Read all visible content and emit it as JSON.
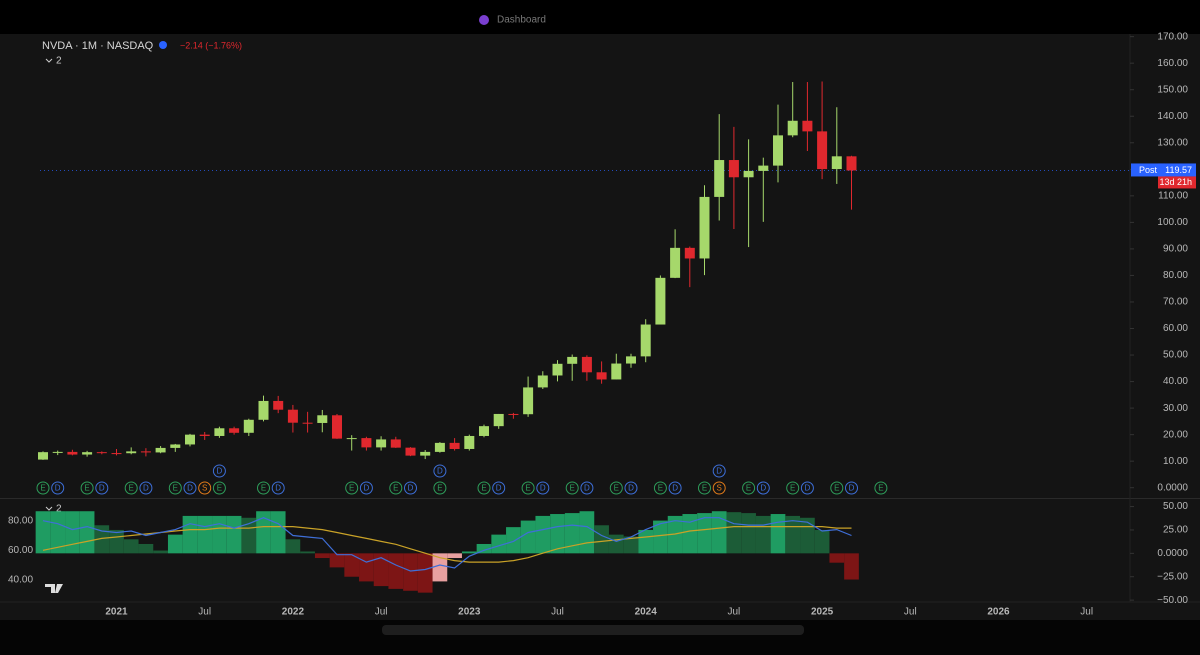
{
  "tabs": [
    "Dashboard"
  ],
  "chart_data": [
    {
      "type": "candlestick",
      "title": "NVDA · 1M · NASDAQ",
      "change": "−2.14 (−1.76%)",
      "pane_count": "2",
      "x": [
        "2020-08",
        "2020-09",
        "2020-10",
        "2020-11",
        "2020-12",
        "2021-01",
        "2021-02",
        "2021-03",
        "2021-04",
        "2021-05",
        "2021-06",
        "2021-07",
        "2021-08",
        "2021-09",
        "2021-10",
        "2021-11",
        "2021-12",
        "2022-01",
        "2022-02",
        "2022-03",
        "2022-04",
        "2022-05",
        "2022-06",
        "2022-07",
        "2022-08",
        "2022-09",
        "2022-10",
        "2022-11",
        "2022-12",
        "2023-01",
        "2023-02",
        "2023-03",
        "2023-04",
        "2023-05",
        "2023-06",
        "2023-07",
        "2023-08",
        "2023-09",
        "2023-10",
        "2023-11",
        "2023-12",
        "2024-01",
        "2024-02",
        "2024-03",
        "2024-04",
        "2024-05",
        "2024-06",
        "2024-07",
        "2024-08",
        "2024-09",
        "2024-10",
        "2024-11",
        "2024-12",
        "2025-01",
        "2025-02",
        "2025-03"
      ],
      "open": [
        10.6,
        13.4,
        13.5,
        12.5,
        13.4,
        13.05,
        13.0,
        13.7,
        13.3,
        15.0,
        16.3,
        20.0,
        19.5,
        22.4,
        20.7,
        25.6,
        32.7,
        29.4,
        24.5,
        24.4,
        27.3,
        18.5,
        18.7,
        15.2,
        18.2,
        15.1,
        12.1,
        13.5,
        16.9,
        14.6,
        19.5,
        23.2,
        27.8,
        27.7,
        37.8,
        42.3,
        46.7,
        49.3,
        43.5,
        40.8,
        46.8,
        49.5,
        61.5,
        79.1,
        90.4,
        86.4,
        109.6,
        123.5,
        117.0,
        119.4,
        121.4,
        132.8,
        138.3,
        134.3,
        120.1,
        124.9
      ],
      "high": [
        13.7,
        14.0,
        14.3,
        13.9,
        13.7,
        14.6,
        15.2,
        14.9,
        15.7,
        16.5,
        20.3,
        21.0,
        23.0,
        23.0,
        26.0,
        34.7,
        34.6,
        31.2,
        28.6,
        29.3,
        27.8,
        19.8,
        19.2,
        19.4,
        19.2,
        15.3,
        14.2,
        17.2,
        18.7,
        20.0,
        23.8,
        27.8,
        28.2,
        41.9,
        43.9,
        48.1,
        50.2,
        49.9,
        47.6,
        50.5,
        50.5,
        63.5,
        80.0,
        97.4,
        90.9,
        114.0,
        140.8,
        136.0,
        131.3,
        124.4,
        144.4,
        152.9,
        152.9,
        153.1,
        143.4,
        125.1
      ],
      "low": [
        10.5,
        12.3,
        12.2,
        11.7,
        12.6,
        12.2,
        12.6,
        11.8,
        13.0,
        13.5,
        15.6,
        18.0,
        18.8,
        20.0,
        19.5,
        25.0,
        28.1,
        20.8,
        20.8,
        20.9,
        18.4,
        14.0,
        14.0,
        14.0,
        15.0,
        11.9,
        10.8,
        13.2,
        14.0,
        14.0,
        19.0,
        22.2,
        26.0,
        26.7,
        37.2,
        40.1,
        40.3,
        40.3,
        39.2,
        40.8,
        45.2,
        47.3,
        61.6,
        79.0,
        75.6,
        80.1,
        100.7,
        97.5,
        90.7,
        100.2,
        115.1,
        132.1,
        126.9,
        116.3,
        114.5,
        104.8
      ],
      "close": [
        13.4,
        13.5,
        12.5,
        13.4,
        13.05,
        13.0,
        13.7,
        13.3,
        15.0,
        16.3,
        20.0,
        19.5,
        22.4,
        20.7,
        25.6,
        32.7,
        29.4,
        24.5,
        24.4,
        27.3,
        18.5,
        18.7,
        15.2,
        18.2,
        15.1,
        12.1,
        13.5,
        16.9,
        14.6,
        19.5,
        23.2,
        27.8,
        27.7,
        37.8,
        42.3,
        46.7,
        49.3,
        43.5,
        40.8,
        46.8,
        49.5,
        61.5,
        79.1,
        90.4,
        86.4,
        109.6,
        123.5,
        117.0,
        119.4,
        121.4,
        132.8,
        138.3,
        134.3,
        120.1,
        124.9,
        119.57
      ],
      "up_color": "#a6d86b",
      "down_color": "#e0282e",
      "last_price_tag": "Post",
      "countdown": "13d 21h",
      "last_price_color": "#2962ff",
      "ylim": [
        -3.5,
        171
      ],
      "yticks": [
        {
          "value": 0,
          "label": "0.0000"
        },
        {
          "value": 10,
          "label": "10.00"
        },
        {
          "value": 20,
          "label": "20.00"
        },
        {
          "value": 30,
          "label": "30.00"
        },
        {
          "value": 40,
          "label": "40.00"
        },
        {
          "value": 50,
          "label": "50.00"
        },
        {
          "value": 60,
          "label": "60.00"
        },
        {
          "value": 70,
          "label": "70.00"
        },
        {
          "value": 80,
          "label": "80.00"
        },
        {
          "value": 90,
          "label": "90.00"
        },
        {
          "value": 100,
          "label": "100.00"
        },
        {
          "value": 110,
          "label": "110.00"
        },
        {
          "value": 120,
          "label": "120.00"
        },
        {
          "value": 130,
          "label": "130.00"
        },
        {
          "value": 140,
          "label": "140.00"
        },
        {
          "value": 150,
          "label": "150.00"
        },
        {
          "value": 160,
          "label": "160.00"
        },
        {
          "value": 170,
          "label": "170.00"
        }
      ],
      "xticks": [
        {
          "value": "2021-01",
          "label": "2021"
        },
        {
          "value": "2021-07",
          "label": "Jul"
        },
        {
          "value": "2022-01",
          "label": "2022"
        },
        {
          "value": "2022-07",
          "label": "Jul"
        },
        {
          "value": "2023-01",
          "label": "2023"
        },
        {
          "value": "2023-07",
          "label": "Jul"
        },
        {
          "value": "2024-01",
          "label": "2024"
        },
        {
          "value": "2024-07",
          "label": "Jul"
        },
        {
          "value": "2025-01",
          "label": "2025"
        },
        {
          "value": "2025-07",
          "label": "Jul"
        },
        {
          "value": "2026-01",
          "label": "2026"
        },
        {
          "value": "2026-07",
          "label": "Jul"
        }
      ],
      "events": [
        {
          "x": "2020-08",
          "label": "E"
        },
        {
          "x": "2020-09",
          "label": "D"
        },
        {
          "x": "2020-11",
          "label": "E"
        },
        {
          "x": "2020-12",
          "label": "D"
        },
        {
          "x": "2021-02",
          "label": "E"
        },
        {
          "x": "2021-03",
          "label": "D"
        },
        {
          "x": "2021-05",
          "label": "E"
        },
        {
          "x": "2021-06",
          "label": "D"
        },
        {
          "x": "2021-07",
          "label": "S"
        },
        {
          "x": "2021-08",
          "label": "E"
        },
        {
          "x": "2021-11",
          "label": "E"
        },
        {
          "x": "2021-12",
          "label": "D"
        },
        {
          "x": "2022-05",
          "label": "E"
        },
        {
          "x": "2022-06",
          "label": "D"
        },
        {
          "x": "2022-08",
          "label": "E"
        },
        {
          "x": "2022-09",
          "label": "D"
        },
        {
          "x": "2022-11",
          "label": "E"
        },
        {
          "x": "2023-02",
          "label": "E"
        },
        {
          "x": "2023-03",
          "label": "D"
        },
        {
          "x": "2023-05",
          "label": "E"
        },
        {
          "x": "2023-06",
          "label": "D"
        },
        {
          "x": "2023-08",
          "label": "E"
        },
        {
          "x": "2023-09",
          "label": "D"
        },
        {
          "x": "2023-11",
          "label": "E"
        },
        {
          "x": "2023-12",
          "label": "D"
        },
        {
          "x": "2024-02",
          "label": "E"
        },
        {
          "x": "2024-03",
          "label": "D"
        },
        {
          "x": "2024-05",
          "label": "E"
        },
        {
          "x": "2024-06",
          "label": "S"
        },
        {
          "x": "2024-08",
          "label": "E"
        },
        {
          "x": "2024-09",
          "label": "D"
        },
        {
          "x": "2024-11",
          "label": "E"
        },
        {
          "x": "2024-12",
          "label": "D"
        },
        {
          "x": "2025-02",
          "label": "E"
        },
        {
          "x": "2025-03",
          "label": "D"
        },
        {
          "x": "2025-05",
          "label": "E"
        }
      ],
      "upper_events": [
        {
          "x": "2021-08",
          "label": "D"
        },
        {
          "x": "2022-11",
          "label": "D"
        },
        {
          "x": "2024-06",
          "label": "D"
        }
      ]
    },
    {
      "type": "oscillator",
      "pane_count": "2",
      "x": [
        "2020-08",
        "2020-09",
        "2020-10",
        "2020-11",
        "2020-12",
        "2021-01",
        "2021-02",
        "2021-03",
        "2021-04",
        "2021-05",
        "2021-06",
        "2021-07",
        "2021-08",
        "2021-09",
        "2021-10",
        "2021-11",
        "2021-12",
        "2022-01",
        "2022-02",
        "2022-03",
        "2022-04",
        "2022-05",
        "2022-06",
        "2022-07",
        "2022-08",
        "2022-09",
        "2022-10",
        "2022-11",
        "2022-12",
        "2023-01",
        "2023-02",
        "2023-03",
        "2023-04",
        "2023-05",
        "2023-06",
        "2023-07",
        "2023-08",
        "2023-09",
        "2023-10",
        "2023-11",
        "2023-12",
        "2024-01",
        "2024-02",
        "2024-03",
        "2024-04",
        "2024-05",
        "2024-06",
        "2024-07",
        "2024-08",
        "2024-09",
        "2024-10",
        "2024-11",
        "2024-12",
        "2025-01",
        "2025-02",
        "2025-03"
      ],
      "histogram": [
        45,
        45,
        45,
        45,
        30,
        25,
        15,
        10,
        3,
        20,
        40,
        40,
        40,
        40,
        38,
        45,
        45,
        15,
        2,
        -5,
        -15,
        -25,
        -30,
        -35,
        -38,
        -40,
        -42,
        -30,
        -5,
        2,
        10,
        20,
        28,
        35,
        40,
        42,
        43,
        45,
        30,
        20,
        18,
        25,
        35,
        40,
        42,
        43,
        45,
        44,
        43,
        40,
        42,
        40,
        38,
        25,
        -10,
        -28
      ],
      "histogram_colors": {
        "up": "#1f9c62",
        "fade": "#1c5c37",
        "down": "#7d1515",
        "recover": "#e8a0a0"
      },
      "line": [
        80,
        78,
        74,
        76,
        73,
        72,
        73,
        70,
        72,
        74,
        78,
        76,
        78,
        75,
        78,
        82,
        78,
        70,
        69,
        68,
        57,
        57,
        52,
        55,
        50,
        46,
        47,
        50,
        48,
        56,
        60,
        63,
        66,
        72,
        74,
        76,
        77,
        76,
        70,
        66,
        69,
        74,
        78,
        80,
        79,
        82,
        82,
        78,
        77,
        77,
        79,
        80,
        79,
        73,
        74,
        70
      ],
      "line_color": "#3f6fd8",
      "signal": [
        60,
        62,
        64,
        66,
        68,
        69,
        70,
        71,
        72,
        73,
        74,
        74,
        75,
        75,
        75,
        76,
        76,
        76,
        75,
        74,
        72,
        70,
        68,
        66,
        64,
        61,
        58,
        55,
        53,
        52,
        52,
        52,
        53,
        55,
        58,
        61,
        63,
        65,
        66,
        67,
        68,
        69,
        70,
        71,
        73,
        74,
        75,
        76,
        76,
        76,
        76,
        76,
        76,
        76,
        75,
        75
      ],
      "signal_color": "#c9a227",
      "ylim": [
        25,
        94
      ],
      "yticks": [
        {
          "value": 80,
          "label": "80.00"
        },
        {
          "value": 60,
          "label": "60.00"
        },
        {
          "value": 40,
          "label": "40.00"
        }
      ],
      "y2lim": [
        -52,
        57
      ],
      "y2ticks": [
        {
          "value": 50,
          "label": "50.00"
        },
        {
          "value": 25,
          "label": "25.00"
        },
        {
          "value": 0,
          "label": "0.0000"
        },
        {
          "value": -25,
          "label": "−25.00"
        },
        {
          "value": -50,
          "label": "−50.00"
        }
      ]
    }
  ]
}
